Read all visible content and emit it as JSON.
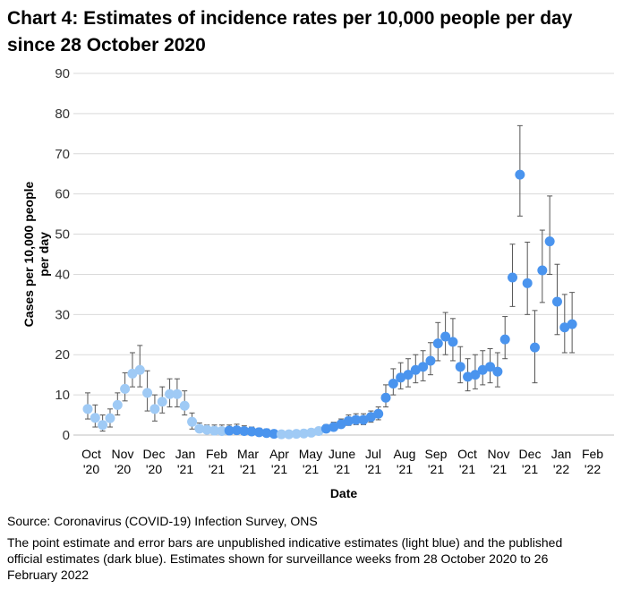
{
  "title": "Chart 4: Estimates of incidence rates per 10,000 people per day since 28 October 2020",
  "source": "Source: Coronavirus (COVID-19) Infection Survey, ONS",
  "note": "The point estimate and error bars are unpublished indicative estimates (light blue) and the published official estimates (dark blue). Estimates shown for surveillance weeks from 28 October 2020 to 26 February 2022",
  "colors": {
    "unpublished": "#9fcaf5",
    "published": "#4a94ee",
    "error_bar": "#555555",
    "grid": "#d9d9d9"
  },
  "chart_data": {
    "type": "scatter",
    "xlabel": "Date",
    "ylabel": "Cases per 10,000 people per day",
    "ylim": [
      0,
      90
    ],
    "yticks": [
      0,
      10,
      20,
      30,
      40,
      50,
      60,
      70,
      80,
      90
    ],
    "grid": true,
    "xtick_labels": [
      {
        "label": "Oct",
        "sub": "'20"
      },
      {
        "label": "Nov",
        "sub": "'20"
      },
      {
        "label": "Dec",
        "sub": "'20"
      },
      {
        "label": "Jan",
        "sub": "'21"
      },
      {
        "label": "Feb",
        "sub": "'21"
      },
      {
        "label": "Mar",
        "sub": "'21"
      },
      {
        "label": "Apr",
        "sub": "'21"
      },
      {
        "label": "May",
        "sub": "'21"
      },
      {
        "label": "June",
        "sub": "'21"
      },
      {
        "label": "Jul",
        "sub": "'21"
      },
      {
        "label": "Aug",
        "sub": "'21"
      },
      {
        "label": "Sep",
        "sub": "'21"
      },
      {
        "label": "Oct",
        "sub": "'21"
      },
      {
        "label": "Nov",
        "sub": "'21"
      },
      {
        "label": "Dec",
        "sub": "'21"
      },
      {
        "label": "Jan",
        "sub": "'22"
      },
      {
        "label": "Feb",
        "sub": "'22"
      }
    ],
    "series": [
      {
        "status": "unpublished",
        "points": [
          {
            "x": "2020-10-28",
            "y": 6.5,
            "lo": 4,
            "hi": 10.5
          },
          {
            "x": "2020-11-04",
            "y": 4.3,
            "lo": 2,
            "hi": 7.5
          },
          {
            "x": "2020-11-11",
            "y": 2.5,
            "lo": 1,
            "hi": 5
          },
          {
            "x": "2020-11-18",
            "y": 4.2,
            "lo": 2,
            "hi": 6.5
          },
          {
            "x": "2020-11-25",
            "y": 7.5,
            "lo": 5,
            "hi": 10.5
          },
          {
            "x": "2020-12-02",
            "y": 11.5,
            "lo": 8.5,
            "hi": 15.5
          },
          {
            "x": "2020-12-09",
            "y": 15.3,
            "lo": 12,
            "hi": 20.5
          },
          {
            "x": "2020-12-16",
            "y": 16.2,
            "lo": 12,
            "hi": 22.3
          },
          {
            "x": "2020-12-23",
            "y": 10.5,
            "lo": 6,
            "hi": 16
          },
          {
            "x": "2020-12-30",
            "y": 6.5,
            "lo": 3.5,
            "hi": 10
          },
          {
            "x": "2021-01-06",
            "y": 8.3,
            "lo": 5.5,
            "hi": 12
          },
          {
            "x": "2021-01-13",
            "y": 10.2,
            "lo": 7,
            "hi": 14
          },
          {
            "x": "2021-01-20",
            "y": 10.2,
            "lo": 7,
            "hi": 14
          },
          {
            "x": "2021-01-27",
            "y": 7.3,
            "lo": 5,
            "hi": 11
          },
          {
            "x": "2021-02-03",
            "y": 3.3,
            "lo": 1.5,
            "hi": 5.5
          },
          {
            "x": "2021-02-10",
            "y": 1.6,
            "lo": 0.8,
            "hi": 3
          },
          {
            "x": "2021-02-17",
            "y": 1.3,
            "lo": 0.6,
            "hi": 2.5
          },
          {
            "x": "2021-02-24",
            "y": 1.1,
            "lo": 0.5,
            "hi": 2.5
          },
          {
            "x": "2021-03-03",
            "y": 1.0,
            "lo": 0.4,
            "hi": 2.5
          }
        ]
      },
      {
        "status": "published",
        "points": [
          {
            "x": "2021-03-10",
            "y": 1.1,
            "lo": 0.5,
            "hi": 2.5
          },
          {
            "x": "2021-03-17",
            "y": 1.2,
            "lo": 0.5,
            "hi": 2.7
          },
          {
            "x": "2021-03-24",
            "y": 1.0,
            "lo": 0.4,
            "hi": 2.3
          },
          {
            "x": "2021-03-31",
            "y": 0.9,
            "lo": 0.3,
            "hi": 2
          },
          {
            "x": "2021-04-07",
            "y": 0.7,
            "lo": 0.2,
            "hi": 1.7
          },
          {
            "x": "2021-04-14",
            "y": 0.5,
            "lo": 0.1,
            "hi": 1.5
          },
          {
            "x": "2021-04-21",
            "y": 0.3,
            "lo": 0,
            "hi": 1
          }
        ]
      },
      {
        "status": "unpublished",
        "points": [
          {
            "x": "2021-04-28",
            "y": 0.2,
            "lo": 0,
            "hi": 0.8
          },
          {
            "x": "2021-05-05",
            "y": 0.2,
            "lo": 0,
            "hi": 0.8
          },
          {
            "x": "2021-05-12",
            "y": 0.3,
            "lo": 0,
            "hi": 0.8
          },
          {
            "x": "2021-05-19",
            "y": 0.4,
            "lo": 0,
            "hi": 1
          },
          {
            "x": "2021-05-26",
            "y": 0.6,
            "lo": 0.2,
            "hi": 1.3
          },
          {
            "x": "2021-06-02",
            "y": 1.0,
            "lo": 0.5,
            "hi": 1.8
          }
        ]
      },
      {
        "status": "published",
        "points": [
          {
            "x": "2021-06-09",
            "y": 1.6,
            "lo": 0.9,
            "hi": 2.6
          },
          {
            "x": "2021-06-16",
            "y": 2.0,
            "lo": 1.2,
            "hi": 3.2
          },
          {
            "x": "2021-06-23",
            "y": 2.7,
            "lo": 1.8,
            "hi": 4
          },
          {
            "x": "2021-06-30",
            "y": 3.5,
            "lo": 2.4,
            "hi": 5
          },
          {
            "x": "2021-07-07",
            "y": 3.8,
            "lo": 2.6,
            "hi": 5.3
          },
          {
            "x": "2021-07-14",
            "y": 3.8,
            "lo": 2.6,
            "hi": 5.3
          },
          {
            "x": "2021-07-21",
            "y": 4.5,
            "lo": 3.2,
            "hi": 6
          },
          {
            "x": "2021-07-28",
            "y": 5.3,
            "lo": 3.8,
            "hi": 7
          },
          {
            "x": "2021-08-04",
            "y": 9.3,
            "lo": 7,
            "hi": 12.5
          },
          {
            "x": "2021-08-11",
            "y": 12.8,
            "lo": 10,
            "hi": 16.5
          },
          {
            "x": "2021-08-18",
            "y": 14.3,
            "lo": 11.5,
            "hi": 18
          },
          {
            "x": "2021-08-25",
            "y": 15.0,
            "lo": 12,
            "hi": 19
          },
          {
            "x": "2021-09-01",
            "y": 16.2,
            "lo": 13,
            "hi": 20
          },
          {
            "x": "2021-09-08",
            "y": 17.0,
            "lo": 13.5,
            "hi": 21
          },
          {
            "x": "2021-09-15",
            "y": 18.5,
            "lo": 15,
            "hi": 23
          },
          {
            "x": "2021-09-22",
            "y": 22.8,
            "lo": 18.5,
            "hi": 28
          },
          {
            "x": "2021-09-29",
            "y": 24.5,
            "lo": 20,
            "hi": 30.5
          },
          {
            "x": "2021-10-06",
            "y": 23.2,
            "lo": 18.5,
            "hi": 29
          },
          {
            "x": "2021-10-13",
            "y": 17.0,
            "lo": 13,
            "hi": 22
          },
          {
            "x": "2021-10-20",
            "y": 14.5,
            "lo": 11,
            "hi": 19
          },
          {
            "x": "2021-10-27",
            "y": 15.0,
            "lo": 11.5,
            "hi": 20
          },
          {
            "x": "2021-11-03",
            "y": 16.2,
            "lo": 12.5,
            "hi": 21
          },
          {
            "x": "2021-11-10",
            "y": 17.0,
            "lo": 13,
            "hi": 21.5
          },
          {
            "x": "2021-11-17",
            "y": 15.8,
            "lo": 12,
            "hi": 20.5
          },
          {
            "x": "2021-11-24",
            "y": 23.8,
            "lo": 19,
            "hi": 29.5
          },
          {
            "x": "2021-12-01",
            "y": 39.2,
            "lo": 32,
            "hi": 47.5
          },
          {
            "x": "2021-12-08",
            "y": 64.8,
            "lo": 54.5,
            "hi": 77
          },
          {
            "x": "2021-12-15",
            "y": 37.8,
            "lo": 30,
            "hi": 48
          },
          {
            "x": "2021-12-22",
            "y": 21.8,
            "lo": 13,
            "hi": 31
          },
          {
            "x": "2021-12-29",
            "y": 41.0,
            "lo": 33,
            "hi": 51
          },
          {
            "x": "2022-01-05",
            "y": 48.2,
            "lo": 40,
            "hi": 59.5
          },
          {
            "x": "2022-01-12",
            "y": 33.2,
            "lo": 25,
            "hi": 42.5
          },
          {
            "x": "2022-01-19",
            "y": 26.8,
            "lo": 20.5,
            "hi": 35
          },
          {
            "x": "2022-01-26",
            "y": 27.6,
            "lo": 20.5,
            "hi": 35.5
          }
        ]
      }
    ]
  }
}
